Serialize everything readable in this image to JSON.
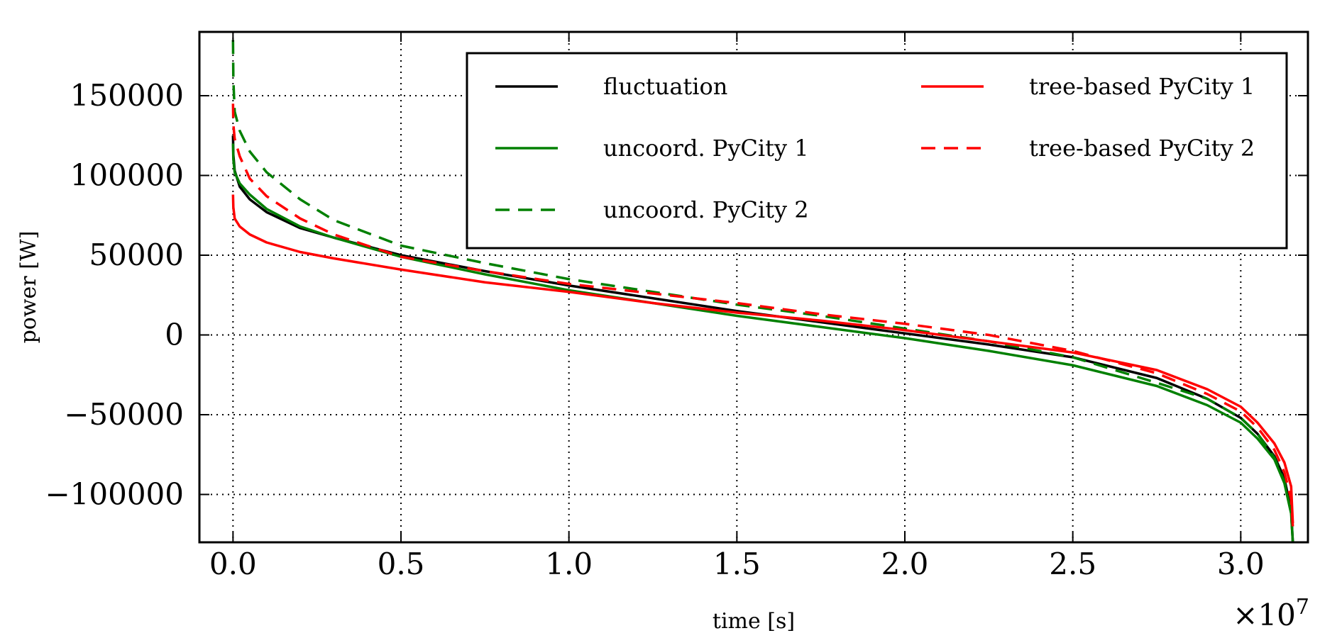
{
  "chart_data": {
    "type": "line",
    "xlabel": "time [s]",
    "ylabel": "power [W]",
    "x_multiplier_label": "×10",
    "x_multiplier_exponent": "7",
    "xlim": [
      -0.1,
      3.2
    ],
    "ylim": [
      -130000,
      190000
    ],
    "x_ticks": [
      0.0,
      0.5,
      1.0,
      1.5,
      2.0,
      2.5,
      3.0
    ],
    "x_tick_labels": [
      "0.0",
      "0.5",
      "1.0",
      "1.5",
      "2.0",
      "2.5",
      "3.0"
    ],
    "y_ticks": [
      150000,
      100000,
      50000,
      0,
      -50000,
      -100000
    ],
    "y_tick_labels": [
      "150000",
      "100000",
      "50000",
      "0",
      "−50000",
      "−100000"
    ],
    "grid": true,
    "legend_placement": "top-right",
    "legend_columns": 2,
    "series": [
      {
        "name": "fluctuation",
        "color": "#000000",
        "style": "solid",
        "x": [
          0.0,
          0.001,
          0.005,
          0.02,
          0.05,
          0.1,
          0.2,
          0.3,
          0.5,
          0.75,
          1.0,
          1.25,
          1.5,
          1.75,
          2.0,
          2.25,
          2.5,
          2.75,
          2.9,
          3.0,
          3.05,
          3.1,
          3.13,
          3.15,
          3.155
        ],
        "y": [
          125000,
          113000,
          103000,
          93000,
          85000,
          77000,
          67000,
          61000,
          50000,
          40000,
          31000,
          23000,
          15000,
          8000,
          1000,
          -6000,
          -14000,
          -27000,
          -40000,
          -52000,
          -62000,
          -76000,
          -90000,
          -110000,
          -130000
        ]
      },
      {
        "name": "uncoord. PyCity 1",
        "color": "#008000",
        "style": "solid",
        "x": [
          0.0,
          0.001,
          0.005,
          0.02,
          0.05,
          0.1,
          0.2,
          0.3,
          0.5,
          0.75,
          1.0,
          1.25,
          1.5,
          1.75,
          2.0,
          2.25,
          2.5,
          2.75,
          2.9,
          3.0,
          3.05,
          3.1,
          3.13,
          3.15,
          3.155
        ],
        "y": [
          120000,
          110000,
          102000,
          95000,
          88000,
          79000,
          68000,
          61000,
          49000,
          38000,
          28000,
          20000,
          12000,
          5000,
          -2000,
          -10000,
          -19000,
          -32000,
          -44000,
          -55000,
          -65000,
          -78000,
          -93000,
          -112000,
          -130000
        ]
      },
      {
        "name": "uncoord. PyCity 2",
        "color": "#008000",
        "style": "dashed",
        "x": [
          0.0,
          0.001,
          0.005,
          0.02,
          0.05,
          0.1,
          0.2,
          0.3,
          0.5,
          0.75,
          1.0,
          1.25,
          1.5,
          1.75,
          2.0,
          2.25,
          2.5,
          2.75,
          2.9,
          3.0,
          3.05,
          3.1,
          3.13,
          3.15,
          3.155
        ],
        "y": [
          185000,
          160000,
          140000,
          128000,
          115000,
          102000,
          85000,
          72000,
          56000,
          45000,
          35000,
          27000,
          19000,
          12000,
          4000,
          -4000,
          -14000,
          -30000,
          -40000,
          -52000,
          -62000,
          -77000,
          -92000,
          -112000,
          -130000
        ]
      },
      {
        "name": "tree-based PyCity 1",
        "color": "#ff0000",
        "style": "solid",
        "x": [
          0.0,
          0.001,
          0.005,
          0.02,
          0.05,
          0.1,
          0.2,
          0.3,
          0.5,
          0.75,
          1.0,
          1.25,
          1.5,
          1.75,
          2.0,
          2.25,
          2.5,
          2.75,
          2.9,
          3.0,
          3.05,
          3.1,
          3.13,
          3.15,
          3.155
        ],
        "y": [
          88000,
          80000,
          73000,
          68000,
          63000,
          58000,
          52000,
          48000,
          41000,
          33000,
          27000,
          20000,
          14000,
          9000,
          3000,
          -4000,
          -11000,
          -22000,
          -34000,
          -45000,
          -55000,
          -68000,
          -80000,
          -95000,
          -118000
        ]
      },
      {
        "name": "tree-based PyCity 2",
        "color": "#ff0000",
        "style": "dashed",
        "x": [
          0.0,
          0.001,
          0.005,
          0.02,
          0.05,
          0.1,
          0.2,
          0.3,
          0.5,
          0.75,
          1.0,
          1.25,
          1.5,
          1.75,
          2.0,
          2.25,
          2.5,
          2.75,
          2.9,
          3.0,
          3.05,
          3.1,
          3.13,
          3.15,
          3.155
        ],
        "y": [
          145000,
          132000,
          123000,
          112000,
          98000,
          87000,
          73000,
          63000,
          49000,
          40000,
          32000,
          26000,
          20000,
          13000,
          7000,
          0,
          -10000,
          -24000,
          -37000,
          -48000,
          -58000,
          -72000,
          -86000,
          -103000,
          -120000
        ]
      }
    ]
  }
}
